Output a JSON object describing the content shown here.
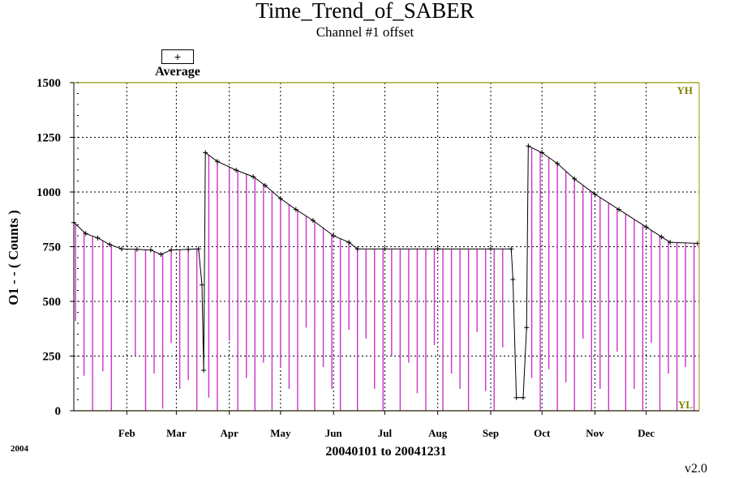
{
  "chart_data": {
    "type": "line",
    "title": "Time_Trend_of_SABER",
    "subtitle": "Channel #1 offset",
    "ylabel": "O1 - - ( Counts )",
    "xlabel": "20040101 to 20041231",
    "year_label": "2004",
    "version": "v2.0",
    "legend": {
      "symbol": "+",
      "label": "Average"
    },
    "ylim": [
      0,
      1500
    ],
    "yticks": [
      0,
      250,
      500,
      750,
      1000,
      1250,
      1500
    ],
    "ytick_labels": [
      "0",
      "250",
      "500",
      "750",
      "1000",
      "1250",
      "1500"
    ],
    "xlim": [
      "2004-01-01",
      "2004-12-31"
    ],
    "x_ticks": [
      {
        "date": "2004-02-01",
        "label": "Feb"
      },
      {
        "date": "2004-03-01",
        "label": "Mar"
      },
      {
        "date": "2004-04-01",
        "label": "Apr"
      },
      {
        "date": "2004-05-01",
        "label": "May"
      },
      {
        "date": "2004-06-01",
        "label": "Jun"
      },
      {
        "date": "2004-07-01",
        "label": "Jul"
      },
      {
        "date": "2004-08-01",
        "label": "Aug"
      },
      {
        "date": "2004-09-01",
        "label": "Sep"
      },
      {
        "date": "2004-10-01",
        "label": "Oct"
      },
      {
        "date": "2004-11-01",
        "label": "Nov"
      },
      {
        "date": "2004-12-01",
        "label": "Dec"
      }
    ],
    "limit_labels": {
      "high": "YH",
      "low": "YL"
    },
    "limits": {
      "high": 1500,
      "low": 0
    },
    "grid": true,
    "series": [
      {
        "name": "Average",
        "points": [
          [
            "2004-01-01",
            860
          ],
          [
            "2004-01-08",
            810
          ],
          [
            "2004-01-15",
            790
          ],
          [
            "2004-01-22",
            760
          ],
          [
            "2004-01-29",
            740
          ],
          [
            "2004-02-07",
            738
          ],
          [
            "2004-02-15",
            735
          ],
          [
            "2004-02-21",
            715
          ],
          [
            "2004-02-27",
            735
          ],
          [
            "2004-03-08",
            738
          ],
          [
            "2004-03-14",
            740
          ],
          [
            "2004-03-16",
            575
          ],
          [
            "2004-03-17",
            185
          ],
          [
            "2004-03-18",
            1180
          ],
          [
            "2004-03-25",
            1140
          ],
          [
            "2004-04-05",
            1100
          ],
          [
            "2004-04-15",
            1070
          ],
          [
            "2004-04-22",
            1030
          ],
          [
            "2004-05-01",
            970
          ],
          [
            "2004-05-10",
            920
          ],
          [
            "2004-05-20",
            870
          ],
          [
            "2004-06-01",
            800
          ],
          [
            "2004-06-10",
            770
          ],
          [
            "2004-06-15",
            740
          ],
          [
            "2004-07-01",
            740
          ],
          [
            "2004-08-01",
            740
          ],
          [
            "2004-09-01",
            740
          ],
          [
            "2004-09-13",
            740
          ],
          [
            "2004-09-14",
            600
          ],
          [
            "2004-09-16",
            60
          ],
          [
            "2004-09-20",
            60
          ],
          [
            "2004-09-22",
            380
          ],
          [
            "2004-09-23",
            1210
          ],
          [
            "2004-10-01",
            1180
          ],
          [
            "2004-10-10",
            1130
          ],
          [
            "2004-10-20",
            1060
          ],
          [
            "2004-11-01",
            990
          ],
          [
            "2004-11-15",
            920
          ],
          [
            "2004-12-01",
            840
          ],
          [
            "2004-12-10",
            795
          ],
          [
            "2004-12-15",
            770
          ],
          [
            "2004-12-31",
            765
          ]
        ]
      },
      {
        "name": "",
        "points": [
          [
            "2004-01-02",
            410
          ],
          [
            "2004-01-07",
            160
          ],
          [
            "2004-01-12",
            0
          ],
          [
            "2004-01-18",
            180
          ],
          [
            "2004-01-23",
            0
          ],
          [
            "2004-02-06",
            250
          ],
          [
            "2004-02-12",
            0
          ],
          [
            "2004-02-17",
            170
          ],
          [
            "2004-02-22",
            10
          ],
          [
            "2004-02-27",
            310
          ],
          [
            "2004-03-03",
            100
          ],
          [
            "2004-03-08",
            140
          ],
          [
            "2004-03-13",
            0
          ],
          [
            "2004-03-20",
            60
          ],
          [
            "2004-03-25",
            0
          ],
          [
            "2004-04-01",
            320
          ],
          [
            "2004-04-06",
            0
          ],
          [
            "2004-04-11",
            150
          ],
          [
            "2004-04-16",
            0
          ],
          [
            "2004-04-21",
            220
          ],
          [
            "2004-04-26",
            0
          ],
          [
            "2004-05-01",
            200
          ],
          [
            "2004-05-06",
            100
          ],
          [
            "2004-05-11",
            0
          ],
          [
            "2004-05-16",
            380
          ],
          [
            "2004-05-21",
            0
          ],
          [
            "2004-05-26",
            200
          ],
          [
            "2004-05-31",
            100
          ],
          [
            "2004-06-05",
            0
          ],
          [
            "2004-06-10",
            370
          ],
          [
            "2004-06-15",
            0
          ],
          [
            "2004-06-20",
            330
          ],
          [
            "2004-06-25",
            100
          ],
          [
            "2004-06-30",
            0
          ],
          [
            "2004-07-05",
            250
          ],
          [
            "2004-07-10",
            0
          ],
          [
            "2004-07-15",
            220
          ],
          [
            "2004-07-20",
            80
          ],
          [
            "2004-07-25",
            0
          ],
          [
            "2004-07-30",
            300
          ],
          [
            "2004-08-04",
            0
          ],
          [
            "2004-08-09",
            170
          ],
          [
            "2004-08-14",
            100
          ],
          [
            "2004-08-19",
            0
          ],
          [
            "2004-08-24",
            360
          ],
          [
            "2004-08-29",
            90
          ],
          [
            "2004-09-03",
            0
          ],
          [
            "2004-09-08",
            290
          ],
          [
            "2004-09-25",
            150
          ],
          [
            "2004-09-30",
            0
          ],
          [
            "2004-10-05",
            190
          ],
          [
            "2004-10-10",
            0
          ],
          [
            "2004-10-15",
            130
          ],
          [
            "2004-10-20",
            0
          ],
          [
            "2004-10-25",
            330
          ],
          [
            "2004-10-30",
            0
          ],
          [
            "2004-11-04",
            100
          ],
          [
            "2004-11-09",
            0
          ],
          [
            "2004-11-14",
            270
          ],
          [
            "2004-11-19",
            0
          ],
          [
            "2004-11-24",
            100
          ],
          [
            "2004-11-29",
            0
          ],
          [
            "2004-12-04",
            310
          ],
          [
            "2004-12-09",
            0
          ],
          [
            "2004-12-14",
            170
          ],
          [
            "2004-12-19",
            0
          ],
          [
            "2004-12-24",
            200
          ],
          [
            "2004-12-29",
            0
          ]
        ]
      }
    ],
    "colors": {
      "minimum_lines": "#cc33cc",
      "average_markers": "#000000",
      "grid": "#000000",
      "limit_lines": "#999900",
      "limit_labels": "#808000",
      "axes": "#000000"
    }
  }
}
